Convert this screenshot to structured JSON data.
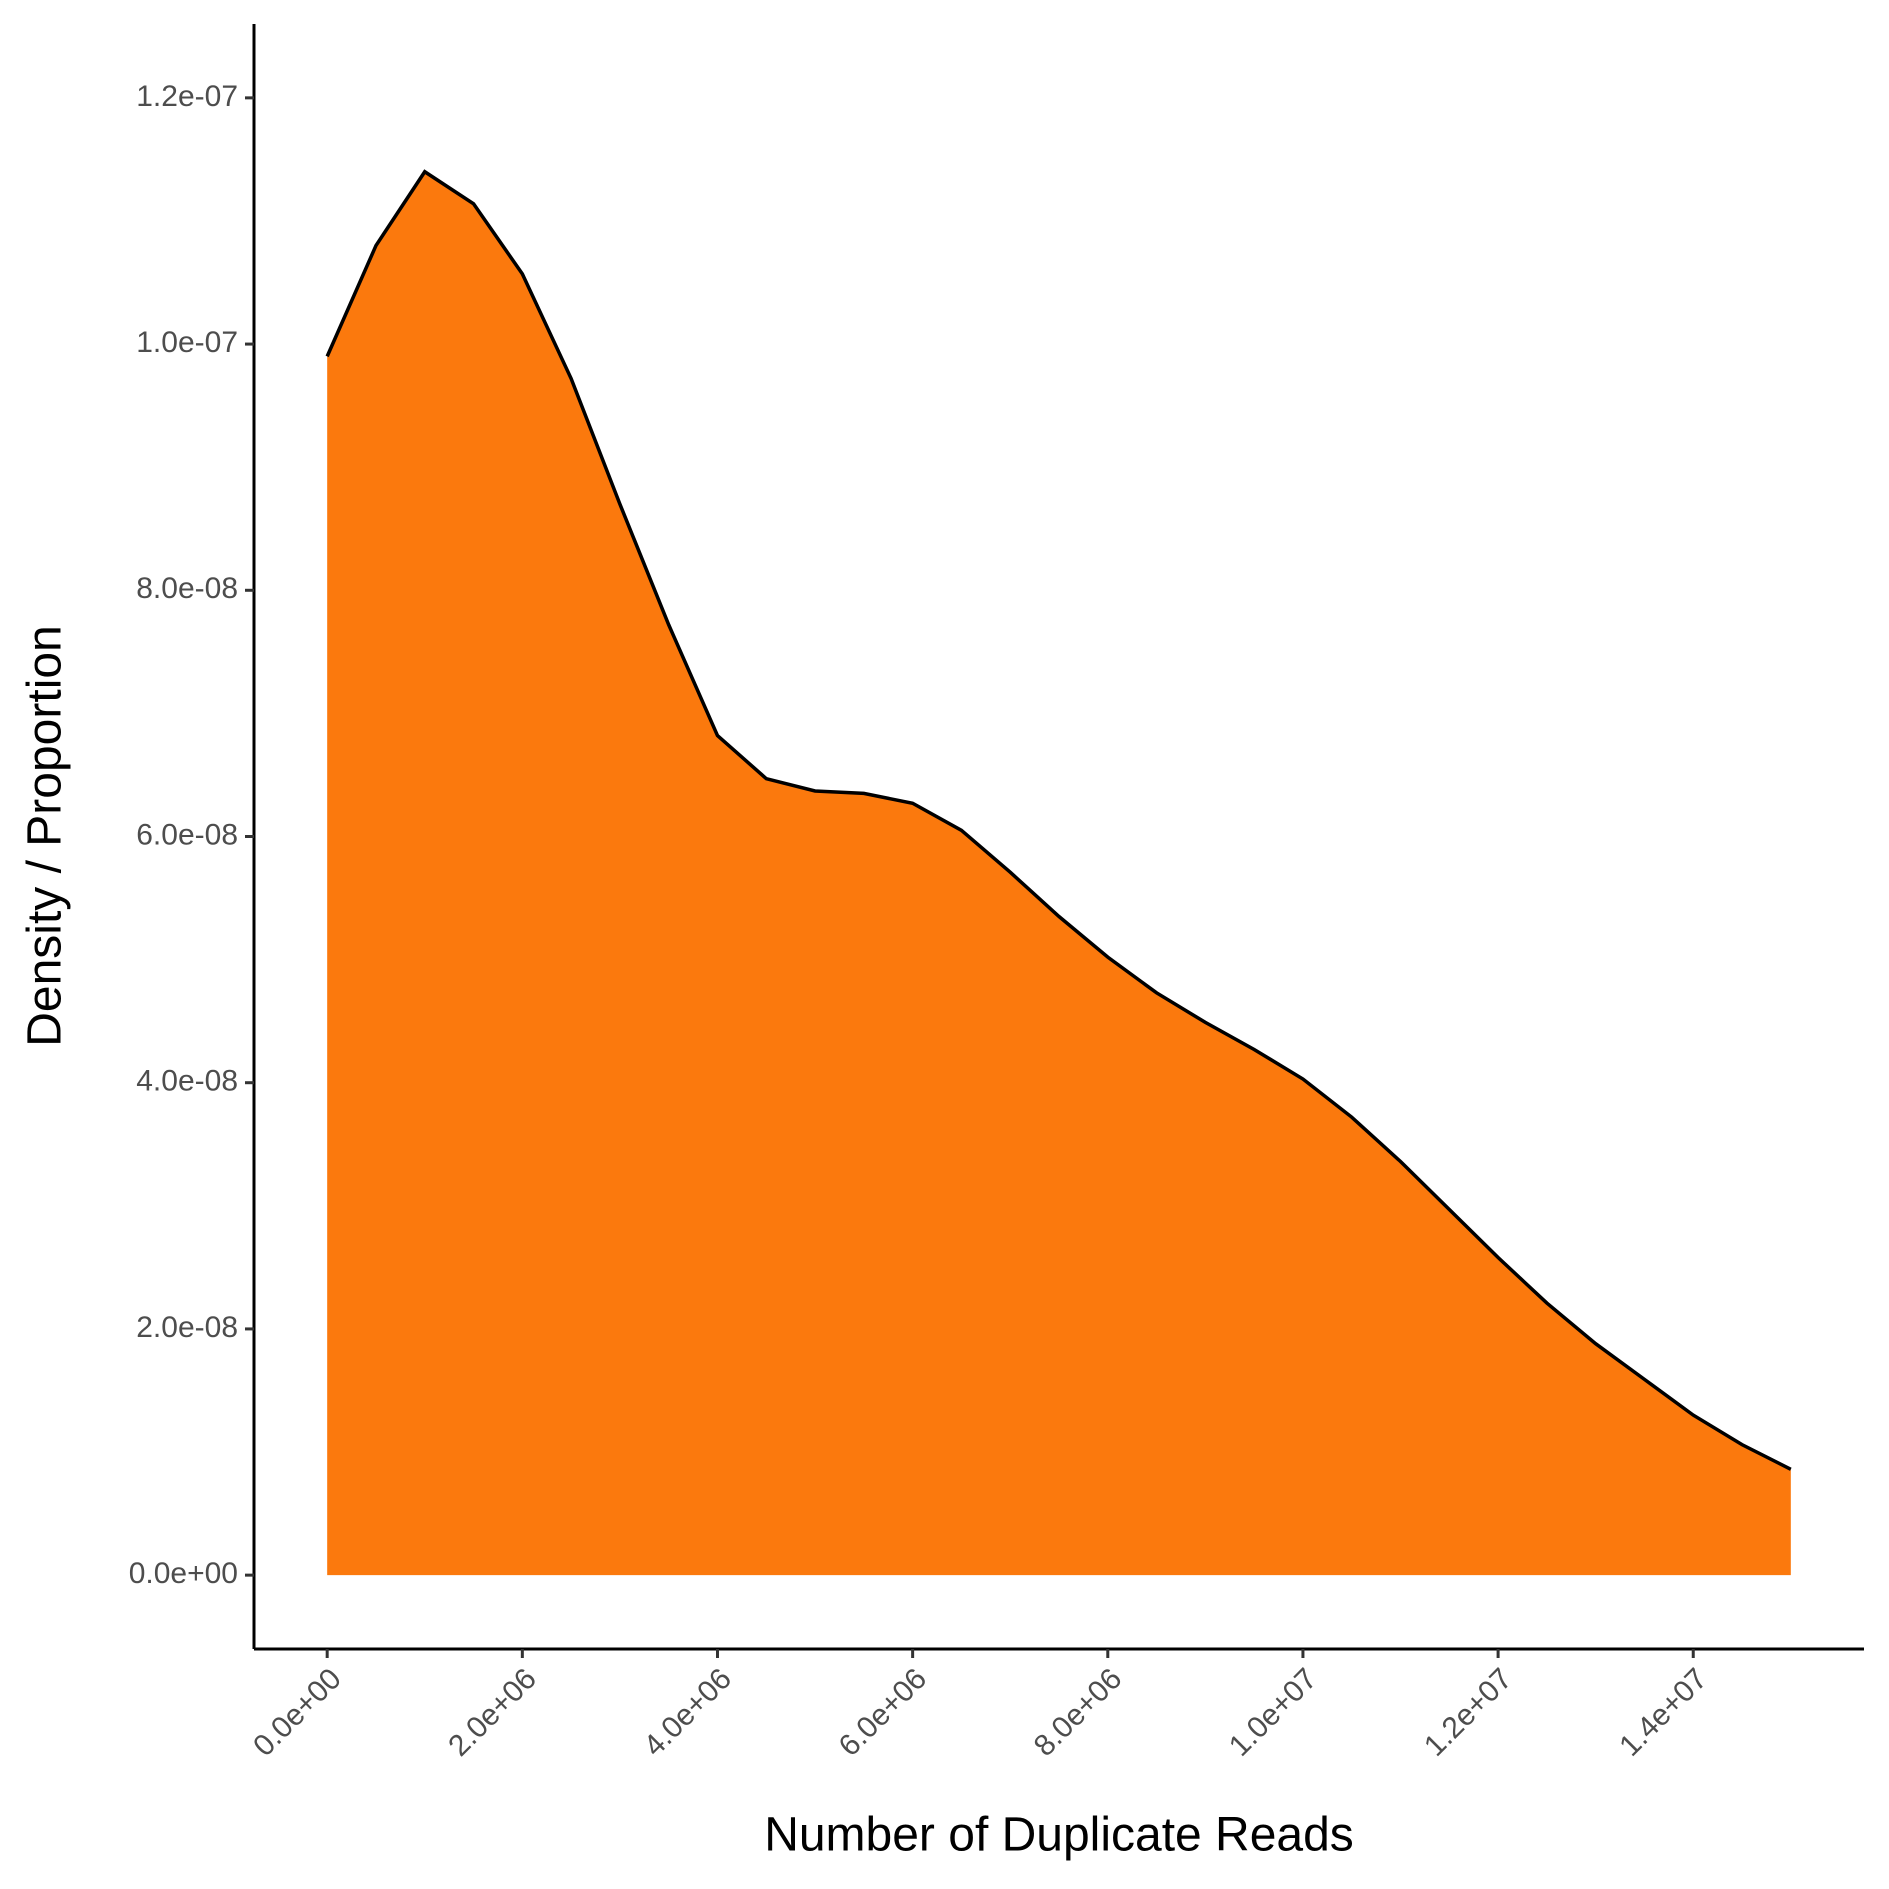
{
  "chart_data": {
    "type": "area",
    "x_label": "Number of Duplicate Reads",
    "y_label": "Density / Proportion",
    "color": "#fb790d",
    "line_color": "#000000",
    "x": [
      0,
      500000,
      1000000,
      1500000,
      2000000,
      2500000,
      3000000,
      3500000,
      4000000,
      4500000,
      5000000,
      5500000,
      6000000,
      6500000,
      7000000,
      7500000,
      8000000,
      8500000,
      9000000,
      9500000,
      10000000,
      10500000,
      11000000,
      11500000,
      12000000,
      12500000,
      13000000,
      13500000,
      14000000,
      14500000,
      15000000
    ],
    "values": [
      9.9e-08,
      1.08e-07,
      1.14e-07,
      1.114e-07,
      1.057e-07,
      9.72e-08,
      8.7e-08,
      7.72e-08,
      6.82e-08,
      6.47e-08,
      6.37e-08,
      6.35e-08,
      6.27e-08,
      6.05e-08,
      5.71e-08,
      5.35e-08,
      5.02e-08,
      4.73e-08,
      4.49e-08,
      4.27e-08,
      4.03e-08,
      3.72e-08,
      3.36e-08,
      2.97e-08,
      2.58e-08,
      2.21e-08,
      1.88e-08,
      1.59e-08,
      1.3e-08,
      1.06e-08,
      8.6e-09
    ],
    "xlim": [
      -750000,
      15750000
    ],
    "ylim": [
      -6e-09,
      1.26e-07
    ],
    "xticks": [
      {
        "value": 0,
        "label": "0.0e+00"
      },
      {
        "value": 2000000,
        "label": "2.0e+06"
      },
      {
        "value": 4000000,
        "label": "4.0e+06"
      },
      {
        "value": 6000000,
        "label": "6.0e+06"
      },
      {
        "value": 8000000,
        "label": "8.0e+06"
      },
      {
        "value": 10000000,
        "label": "1.0e+07"
      },
      {
        "value": 12000000,
        "label": "1.2e+07"
      },
      {
        "value": 14000000,
        "label": "1.4e+07"
      }
    ],
    "yticks": [
      {
        "value": 0,
        "label": "0.0e+00"
      },
      {
        "value": 2e-08,
        "label": "2.0e-08"
      },
      {
        "value": 4e-08,
        "label": "4.0e-08"
      },
      {
        "value": 6e-08,
        "label": "6.0e-08"
      },
      {
        "value": 8e-08,
        "label": "8.0e-08"
      },
      {
        "value": 1e-07,
        "label": "1.0e-07"
      },
      {
        "value": 1.2e-07,
        "label": "1.2e-07"
      }
    ],
    "grid": false
  }
}
